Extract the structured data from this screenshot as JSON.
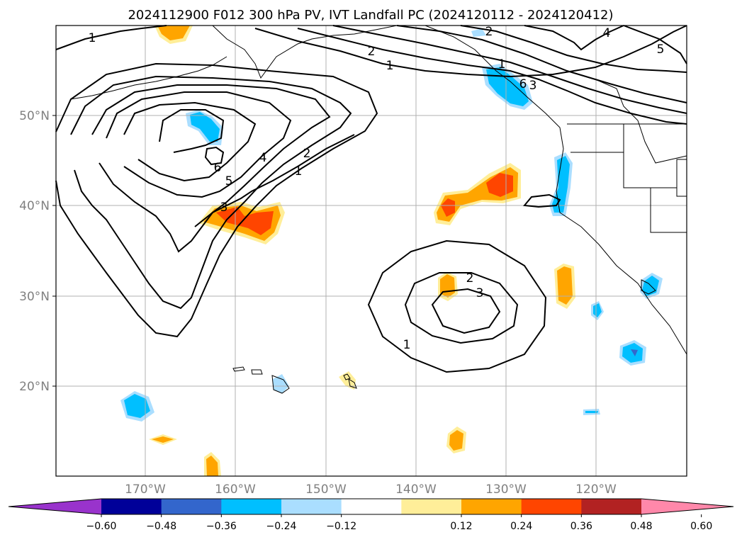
{
  "title": "2024112900 F012 300 hPa PV, IVT Landfall PC (2024120112 - 2024120412)",
  "lon_ticks": [
    "170°W",
    "160°W",
    "150°W",
    "140°W",
    "130°W",
    "120°W"
  ],
  "lat_ticks": [
    "50°N",
    "40°N",
    "30°N",
    "20°N"
  ],
  "colorbar": {
    "ticks": [
      "−0.60",
      "−0.48",
      "−0.36",
      "−0.24",
      "−0.12",
      "0.12",
      "0.24",
      "0.36",
      "0.48",
      "0.60"
    ],
    "colors": [
      "#9933cc",
      "#000099",
      "#3366cc",
      "#00bfff",
      "#aadeff",
      "#ffffff",
      "#ffee99",
      "#ffa500",
      "#ff4500",
      "#b22222",
      "#ff88aa"
    ]
  },
  "contour_labels": [
    "1",
    "2",
    "6",
    "4",
    "5",
    "1",
    "3",
    "2",
    "1",
    "1",
    "2",
    "4",
    "5",
    "6",
    "3",
    "2",
    "3",
    "1"
  ],
  "colors": {
    "land_outline": "#000000",
    "contour": "#000000",
    "grid": "#b0b0b0"
  }
}
